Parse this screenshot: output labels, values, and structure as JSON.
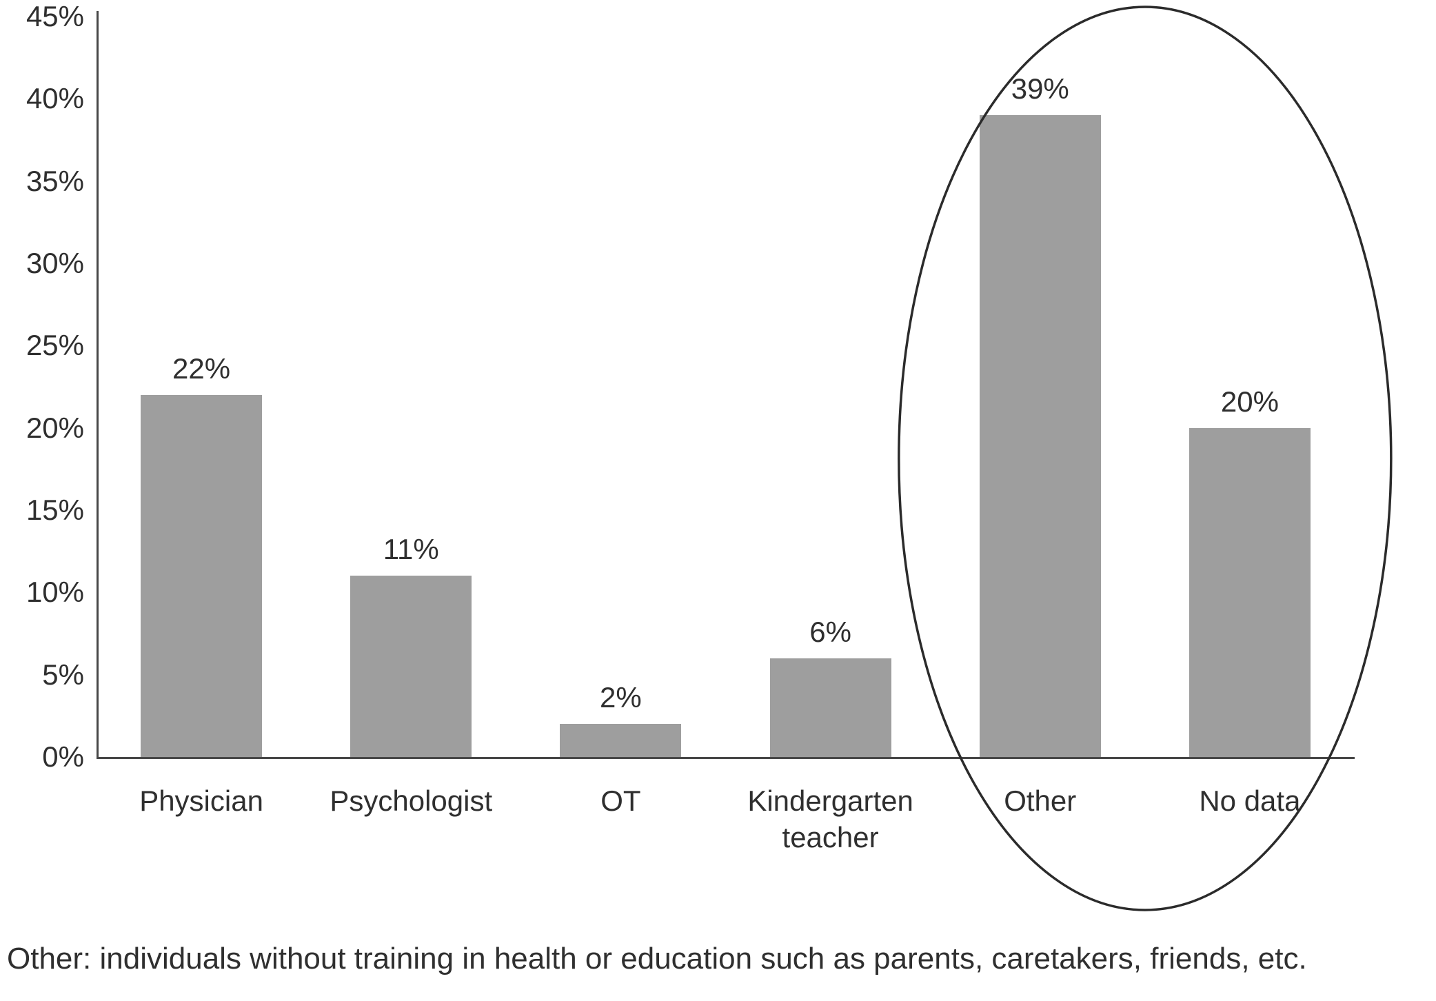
{
  "chart_data": {
    "type": "bar",
    "title": "",
    "xlabel": "",
    "ylabel": "",
    "categories": [
      "Physician",
      "Psychologist",
      "OT",
      "Kindergarten teacher",
      "Other",
      "No data"
    ],
    "values": [
      22,
      11,
      2,
      6,
      39,
      20
    ],
    "data_labels": [
      "22%",
      "11%",
      "2%",
      "6%",
      "39%",
      "20%"
    ],
    "ylim": [
      0,
      45
    ],
    "ytick_step": 5,
    "ytick_labels": [
      "0%",
      "5%",
      "10%",
      "15%",
      "20%",
      "25%",
      "30%",
      "35%",
      "40%",
      "45%"
    ],
    "grid": false,
    "legend": false,
    "bar_color": "#9e9e9e",
    "text_color": "#2f2f2f",
    "axis_color": "#474747",
    "annotation": {
      "shape": "ellipse",
      "around": [
        "Other",
        "No data"
      ],
      "color": "#2b2b2b"
    }
  },
  "footnote": "Other: individuals without training in health or education such as parents, caretakers, friends, etc."
}
